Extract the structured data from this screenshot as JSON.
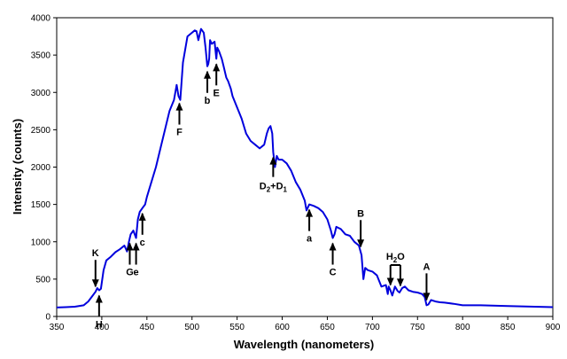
{
  "chart_data": {
    "type": "line",
    "title": "",
    "xlabel": "Wavelength (nanometers)",
    "ylabel": "Intensity (counts)",
    "xlim": [
      350,
      900
    ],
    "ylim": [
      0,
      4000
    ],
    "x_ticks": [
      "350",
      "400",
      "450",
      "500",
      "550",
      "600",
      "650",
      "700",
      "750",
      "800",
      "850",
      "900"
    ],
    "y_ticks": [
      "0",
      "500",
      "1000",
      "1500",
      "2000",
      "2500",
      "3000",
      "3500",
      "4000"
    ],
    "grid": false,
    "legend": "none",
    "line_color": "#0000dd",
    "series": [
      {
        "x": [
          350,
          360,
          370,
          380,
          385,
          390,
          393,
          395,
          397,
          399,
          402,
          405,
          410,
          415,
          420,
          425,
          428,
          430,
          432,
          435,
          438,
          440,
          442,
          445,
          448,
          450,
          455,
          460,
          465,
          470,
          475,
          480,
          483,
          485,
          487,
          490,
          495,
          500,
          503,
          505,
          507,
          510,
          513,
          515,
          517,
          518,
          519,
          520,
          522,
          525,
          527,
          528,
          530,
          533,
          535,
          538,
          540,
          543,
          545,
          550,
          555,
          560,
          565,
          570,
          575,
          580,
          583,
          585,
          587,
          589,
          590,
          592,
          594,
          596,
          600,
          605,
          610,
          615,
          620,
          625,
          627,
          630,
          635,
          640,
          645,
          650,
          654,
          656,
          658,
          660,
          665,
          670,
          675,
          680,
          685,
          688,
          690,
          692,
          695,
          700,
          705,
          710,
          715,
          717,
          718,
          720,
          722,
          725,
          728,
          730,
          733,
          736,
          740,
          745,
          750,
          755,
          758,
          760,
          762,
          765,
          770,
          775,
          780,
          790,
          800,
          820,
          850,
          880,
          900
        ],
        "values": [
          120,
          125,
          130,
          150,
          200,
          280,
          330,
          380,
          350,
          370,
          620,
          750,
          800,
          860,
          900,
          950,
          870,
          1000,
          1100,
          1150,
          1050,
          1300,
          1400,
          1450,
          1500,
          1600,
          1800,
          2000,
          2250,
          2500,
          2750,
          2900,
          3100,
          2950,
          2900,
          3400,
          3750,
          3800,
          3830,
          3820,
          3700,
          3850,
          3800,
          3600,
          3350,
          3380,
          3450,
          3700,
          3650,
          3680,
          3450,
          3600,
          3550,
          3450,
          3350,
          3200,
          3150,
          3050,
          2950,
          2800,
          2650,
          2450,
          2350,
          2300,
          2250,
          2300,
          2450,
          2520,
          2550,
          2450,
          2200,
          2000,
          2150,
          2100,
          2100,
          2050,
          1950,
          1800,
          1700,
          1550,
          1420,
          1500,
          1480,
          1450,
          1400,
          1300,
          1150,
          1050,
          1100,
          1200,
          1170,
          1100,
          1080,
          1000,
          950,
          820,
          500,
          650,
          620,
          600,
          550,
          400,
          420,
          300,
          400,
          350,
          280,
          400,
          340,
          320,
          380,
          400,
          350,
          330,
          320,
          300,
          260,
          150,
          160,
          220,
          200,
          190,
          185,
          170,
          150,
          150,
          140,
          130,
          125
        ]
      }
    ],
    "annotations": [
      {
        "text": "K",
        "x": 393,
        "dir": "down"
      },
      {
        "text": "H",
        "x": 397,
        "dir": "up"
      },
      {
        "text": "G",
        "x": 431,
        "dir": "up"
      },
      {
        "text": "e",
        "x": 438,
        "dir": "up"
      },
      {
        "text": "c",
        "x": 445,
        "dir": "up"
      },
      {
        "text": "F",
        "x": 486,
        "dir": "up"
      },
      {
        "text": "b",
        "x": 517,
        "dir": "up"
      },
      {
        "text": "E",
        "x": 527,
        "dir": "up"
      },
      {
        "text": "a",
        "x": 630,
        "dir": "up"
      },
      {
        "text": "C",
        "x": 656,
        "dir": "up"
      },
      {
        "text": "B",
        "x": 687,
        "dir": "down"
      },
      {
        "text": "A",
        "x": 760,
        "dir": "down"
      }
    ],
    "label_D": {
      "main": "D",
      "sub2": "2",
      "plus": "+D",
      "sub1": "1"
    },
    "label_H2O": {
      "main": "H",
      "sub": "2",
      "tail": "O"
    }
  }
}
